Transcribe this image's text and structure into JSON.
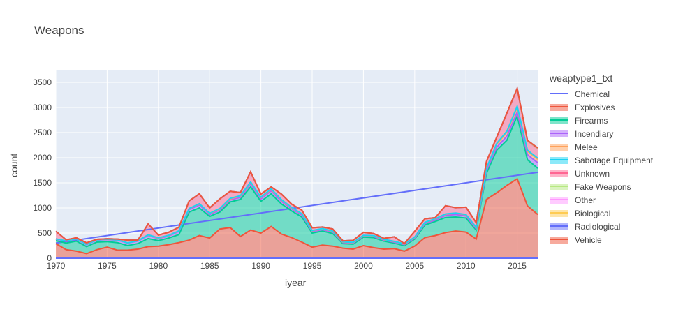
{
  "chart_data": {
    "type": "area",
    "title": "Weapons",
    "xlabel": "iyear",
    "ylabel": "count",
    "legend_title": "weaptype1_txt",
    "legend_position": "right",
    "grid": true,
    "xlim": [
      1970,
      2017
    ],
    "ylim": [
      0,
      3750
    ],
    "x_ticks": [
      1970,
      1975,
      1980,
      1985,
      1990,
      1995,
      2000,
      2005,
      2010,
      2015
    ],
    "y_ticks": [
      0,
      500,
      1000,
      1500,
      2000,
      2500,
      3000,
      3500
    ],
    "x": [
      1970,
      1971,
      1972,
      1973,
      1974,
      1975,
      1976,
      1977,
      1978,
      1979,
      1980,
      1981,
      1982,
      1983,
      1984,
      1985,
      1986,
      1987,
      1988,
      1989,
      1990,
      1991,
      1992,
      1993,
      1994,
      1995,
      1996,
      1997,
      1998,
      1999,
      2000,
      2001,
      2002,
      2003,
      2004,
      2005,
      2006,
      2007,
      2008,
      2009,
      2010,
      2011,
      2012,
      2013,
      2014,
      2015,
      2016,
      2017
    ],
    "series": [
      {
        "name": "Chemical",
        "color": "#636efa",
        "mode": "line",
        "values": [
          0,
          0,
          0,
          0,
          0,
          0,
          0,
          0,
          0,
          0,
          0,
          0,
          0,
          0,
          0,
          0,
          0,
          0,
          0,
          0,
          0,
          0,
          0,
          0,
          0,
          0,
          0,
          0,
          0,
          0,
          0,
          0,
          0,
          0,
          0,
          0,
          0,
          0,
          0,
          0,
          0,
          0,
          0,
          0,
          0,
          0,
          0,
          0
        ],
        "trend": [
          300,
          1710
        ]
      },
      {
        "name": "Explosives",
        "color": "#ef553b",
        "mode": "area",
        "values": [
          290,
          170,
          140,
          90,
          170,
          220,
          160,
          160,
          180,
          230,
          240,
          270,
          310,
          360,
          450,
          400,
          580,
          610,
          430,
          560,
          500,
          630,
          480,
          410,
          320,
          220,
          260,
          240,
          200,
          180,
          250,
          210,
          180,
          190,
          140,
          240,
          410,
          450,
          510,
          540,
          520,
          380,
          1170,
          1300,
          1450,
          1580,
          1040,
          870
        ]
      },
      {
        "name": "Firearms",
        "color": "#00cc96",
        "mode": "area",
        "values": [
          60,
          130,
          200,
          140,
          150,
          110,
          150,
          90,
          110,
          160,
          110,
          130,
          160,
          560,
          550,
          430,
          340,
          510,
          740,
          860,
          630,
          650,
          600,
          530,
          500,
          280,
          280,
          250,
          90,
          100,
          170,
          200,
          160,
          110,
          110,
          140,
          250,
          280,
          300,
          280,
          280,
          180,
          520,
          850,
          900,
          1250,
          920,
          920
        ]
      },
      {
        "name": "Incendiary",
        "color": "#ab63fa",
        "mode": "area",
        "values": [
          30,
          40,
          40,
          40,
          40,
          40,
          50,
          50,
          50,
          60,
          40,
          40,
          60,
          50,
          60,
          40,
          40,
          40,
          40,
          60,
          50,
          60,
          50,
          40,
          40,
          30,
          30,
          30,
          20,
          20,
          20,
          20,
          20,
          20,
          20,
          20,
          30,
          30,
          40,
          50,
          40,
          30,
          50,
          60,
          80,
          80,
          100,
          110
        ]
      },
      {
        "name": "Melee",
        "color": "#ffa15a",
        "mode": "area",
        "values": [
          5,
          5,
          5,
          5,
          5,
          5,
          5,
          5,
          5,
          10,
          10,
          10,
          10,
          15,
          20,
          20,
          20,
          20,
          25,
          30,
          25,
          30,
          25,
          20,
          20,
          15,
          15,
          15,
          10,
          10,
          10,
          15,
          10,
          10,
          10,
          15,
          20,
          20,
          25,
          25,
          25,
          20,
          40,
          60,
          80,
          90,
          70,
          70
        ]
      },
      {
        "name": "Sabotage Equipment",
        "color": "#19d3f3",
        "mode": "area",
        "values": [
          0,
          0,
          0,
          0,
          0,
          0,
          0,
          0,
          0,
          5,
          5,
          5,
          5,
          5,
          5,
          5,
          10,
          10,
          10,
          10,
          10,
          10,
          10,
          10,
          5,
          5,
          5,
          5,
          5,
          5,
          5,
          5,
          5,
          5,
          5,
          5,
          5,
          5,
          5,
          5,
          5,
          5,
          10,
          15,
          20,
          25,
          20,
          20
        ]
      },
      {
        "name": "Unknown",
        "color": "#ff6692",
        "mode": "area",
        "values": [
          150,
          20,
          20,
          30,
          10,
          10,
          15,
          55,
          15,
          215,
          55,
          60,
          70,
          150,
          195,
          105,
          190,
          140,
          60,
          200,
          60,
          40,
          110,
          65,
          70,
          55,
          30,
          40,
          20,
          40,
          60,
          40,
          20,
          90,
          5,
          115,
          70,
          20,
          165,
          105,
          145,
          90,
          130,
          115,
          355,
          340,
          180,
          190
        ]
      },
      {
        "name": "Fake Weapons",
        "color": "#b6e880",
        "mode": "area",
        "values": [
          0,
          0,
          0,
          0,
          0,
          0,
          0,
          0,
          0,
          0,
          0,
          0,
          0,
          0,
          0,
          0,
          0,
          0,
          0,
          0,
          0,
          0,
          0,
          0,
          0,
          0,
          0,
          0,
          0,
          0,
          0,
          0,
          0,
          0,
          0,
          0,
          0,
          0,
          0,
          0,
          0,
          0,
          0,
          5,
          5,
          5,
          5,
          5
        ]
      },
      {
        "name": "Other",
        "color": "#ff97ff",
        "mode": "area",
        "values": [
          0,
          0,
          0,
          0,
          0,
          0,
          0,
          0,
          0,
          0,
          0,
          0,
          0,
          0,
          0,
          0,
          0,
          0,
          0,
          0,
          0,
          0,
          0,
          0,
          0,
          0,
          0,
          0,
          0,
          0,
          0,
          0,
          0,
          0,
          0,
          0,
          0,
          0,
          0,
          0,
          0,
          0,
          5,
          5,
          5,
          10,
          10,
          10
        ]
      },
      {
        "name": "Biological",
        "color": "#fecb52",
        "mode": "area",
        "values": [
          0,
          0,
          0,
          0,
          0,
          0,
          0,
          0,
          0,
          0,
          0,
          0,
          0,
          0,
          0,
          0,
          0,
          0,
          0,
          0,
          0,
          0,
          0,
          0,
          0,
          0,
          0,
          0,
          0,
          0,
          0,
          0,
          0,
          0,
          0,
          0,
          0,
          0,
          0,
          0,
          0,
          0,
          0,
          0,
          0,
          0,
          0,
          0
        ]
      },
      {
        "name": "Radiological",
        "color": "#636efa",
        "mode": "area",
        "values": [
          0,
          0,
          0,
          0,
          0,
          0,
          0,
          0,
          0,
          0,
          0,
          0,
          0,
          0,
          0,
          0,
          0,
          0,
          0,
          0,
          0,
          0,
          0,
          0,
          0,
          0,
          0,
          0,
          0,
          0,
          0,
          0,
          0,
          0,
          0,
          0,
          0,
          0,
          0,
          0,
          0,
          0,
          0,
          0,
          0,
          0,
          0,
          0
        ]
      },
      {
        "name": "Vehicle",
        "color": "#ef553b",
        "mode": "area",
        "values": [
          0,
          0,
          0,
          0,
          0,
          0,
          0,
          0,
          0,
          0,
          0,
          0,
          0,
          0,
          0,
          0,
          0,
          0,
          0,
          0,
          0,
          0,
          0,
          0,
          0,
          0,
          0,
          0,
          0,
          0,
          0,
          0,
          0,
          0,
          0,
          0,
          0,
          0,
          0,
          0,
          0,
          0,
          0,
          0,
          0,
          0,
          0,
          0
        ]
      }
    ]
  }
}
